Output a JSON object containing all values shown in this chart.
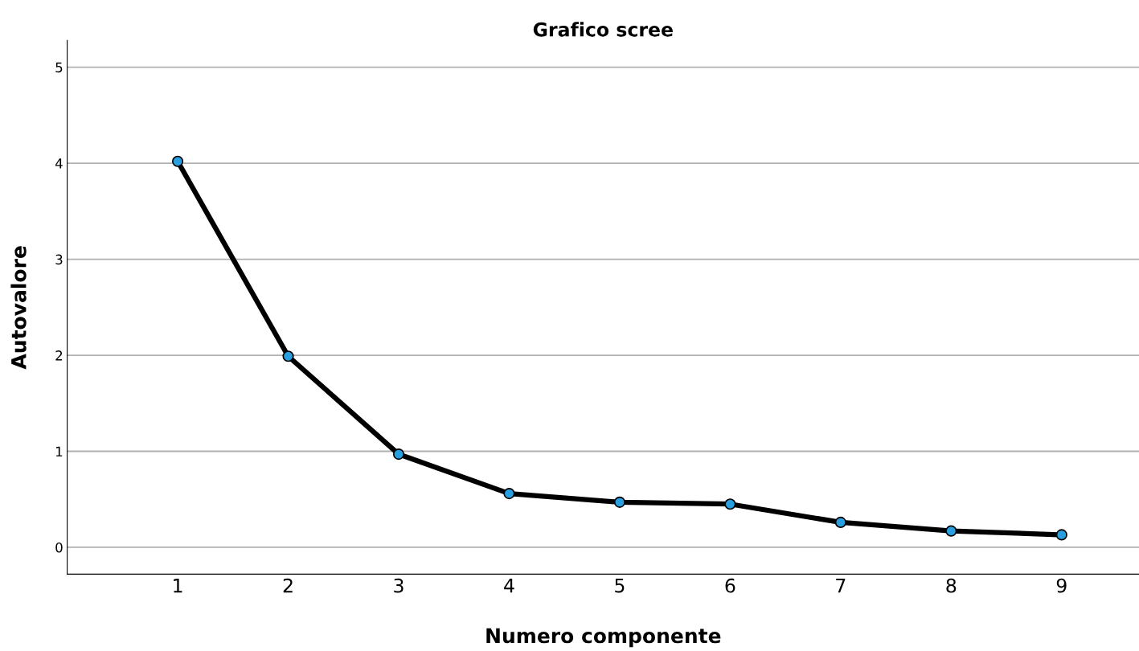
{
  "chart_data": {
    "type": "line",
    "title": "Grafico scree",
    "xlabel": "Numero componente",
    "ylabel": "Autovalore",
    "x": [
      1,
      2,
      3,
      4,
      5,
      6,
      7,
      8,
      9
    ],
    "series": [
      {
        "color": "#000000",
        "colors": [
          "#2a9fe0",
          "#2a9fe0",
          "#2a9fe0",
          "#2a9fe0",
          "#2a9fe0",
          "#2a9fe0",
          "#2a9fe0",
          "#2a9fe0",
          "#2a9fe0"
        ],
        "values": [
          4.02,
          1.99,
          0.97,
          0.56,
          0.47,
          0.45,
          0.26,
          0.17,
          0.13
        ]
      }
    ],
    "xlim": [
      0,
      9.7
    ],
    "xticks": [
      1,
      2,
      3,
      4,
      5,
      6,
      7,
      8,
      9
    ],
    "ylim": [
      -0.28,
      5.28
    ],
    "yticks": [
      0,
      1,
      2,
      3,
      4,
      5
    ],
    "grid": "y",
    "marker": "circle",
    "line_style": "solid"
  }
}
